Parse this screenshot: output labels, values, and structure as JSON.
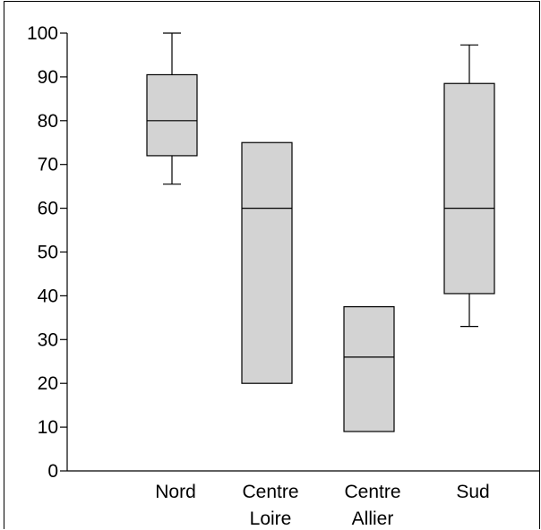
{
  "chart_data": {
    "type": "box",
    "categories": [
      "Nord",
      "Centre Loire",
      "Centre Allier",
      "Sud"
    ],
    "category_lines": [
      [
        "Nord"
      ],
      [
        "Centre",
        "Loire"
      ],
      [
        "Centre",
        "Allier"
      ],
      [
        "Sud"
      ]
    ],
    "boxes": [
      {
        "category": "Nord",
        "min": 65.5,
        "q1": 72,
        "median": 80,
        "q3": 90.5,
        "max": 100
      },
      {
        "category": "Centre Loire",
        "min": 20,
        "q1": 20,
        "median": 60,
        "q3": 75,
        "max": 75
      },
      {
        "category": "Centre Allier",
        "min": 9,
        "q1": 9,
        "median": 26,
        "q3": 37.5,
        "max": 37.5
      },
      {
        "category": "Sud",
        "min": 33,
        "q1": 40.5,
        "median": 60,
        "q3": 88.5,
        "max": 97.3
      }
    ],
    "ylim": [
      0,
      100
    ],
    "yticks": [
      0,
      10,
      20,
      30,
      40,
      50,
      60,
      70,
      80,
      90,
      100
    ],
    "grid": false,
    "colors": {
      "box_fill": "#d3d3d3",
      "stroke": "#000000"
    }
  }
}
